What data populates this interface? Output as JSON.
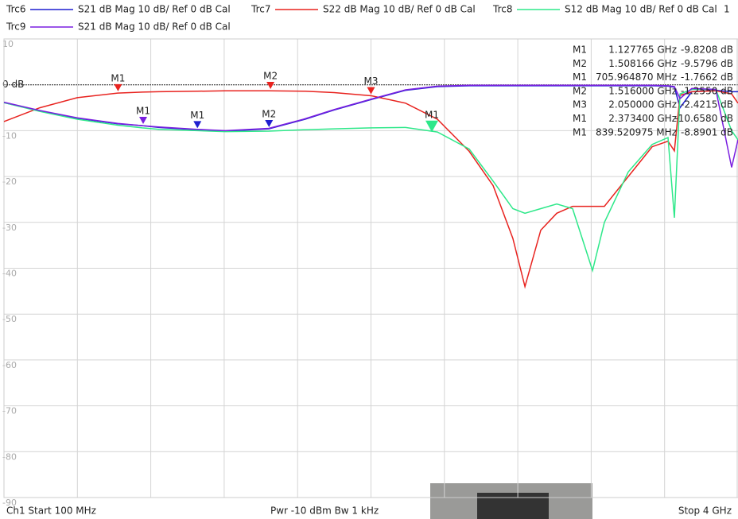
{
  "chart_data": {
    "type": "line",
    "x": [
      100,
      290,
      489,
      704,
      835,
      924,
      1127,
      1275,
      1507,
      1700,
      1854,
      2052,
      2234,
      2403,
      2572,
      2699,
      2804,
      2868,
      2952,
      3037,
      3121,
      3227,
      3290,
      3417,
      3544,
      3628,
      3662,
      3692,
      3755,
      3882,
      3966,
      4000
    ],
    "xlim": [
      100,
      4000
    ],
    "ylim": [
      -90,
      10
    ],
    "yticks": [
      10,
      {
        "value": 0,
        "label": "0 dB"
      },
      -10,
      -20,
      -30,
      -40,
      -50,
      -60,
      -70,
      -80,
      -90
    ],
    "grid": true,
    "series": [
      {
        "name": "Trc6",
        "description": "S21  dB Mag  10 dB/ Ref 0 dB  Cal",
        "color": "#1f1fd0",
        "values": [
          -3.9,
          -5.7,
          -7.3,
          -8.5,
          -8.9,
          -9.3,
          -9.8,
          -10.1,
          -9.6,
          -7.5,
          -5.5,
          -3.2,
          -1.2,
          -0.4,
          -0.2,
          -0.2,
          -0.2,
          -0.2,
          -0.2,
          -0.2,
          -0.2,
          -0.2,
          -0.2,
          -0.2,
          -0.2,
          -0.3,
          -0.5,
          -5,
          -1.5,
          -1.2,
          -1.5,
          -1.5
        ],
        "markers": [
          {
            "name": "M1",
            "x": 1127.765,
            "y": -9.8208,
            "x_label": "1.127765 GHz",
            "y_label": "-9.8208 dB"
          },
          {
            "name": "M2",
            "x": 1508.166,
            "y": -9.5796,
            "x_label": "1.508166 GHz",
            "y_label": "-9.5796 dB"
          }
        ]
      },
      {
        "name": "Trc7",
        "description": "S22  dB Mag  10 dB/ Ref 0 dB  Cal",
        "color": "#e8231f",
        "values": [
          -8,
          -5,
          -2.8,
          -1.8,
          -1.6,
          -1.5,
          -1.4,
          -1.3,
          -1.3,
          -1.4,
          -1.7,
          -2.4,
          -4,
          -7.5,
          -14.5,
          -22,
          -33.5,
          -44,
          -31.7,
          -28,
          -26.5,
          -26.5,
          -26.5,
          -20,
          -13.5,
          -12.3,
          -14.4,
          -2.3,
          -1.5,
          -1.3,
          -2,
          -4
        ],
        "markers": [
          {
            "name": "M1",
            "x": 705.96487,
            "y": -1.7662,
            "x_label": "705.964870 MHz",
            "y_label": "-1.7662 dB"
          },
          {
            "name": "M2",
            "x": 1516,
            "y": -1.255,
            "x_label": "1.516000 GHz",
            "y_label": "-1.2550 dB"
          },
          {
            "name": "M3",
            "x": 2050,
            "y": -2.4215,
            "x_label": "2.050000 GHz",
            "y_label": "-2.4215 dB"
          }
        ]
      },
      {
        "name": "Trc8",
        "description": "S12  dB Mag  10 dB/ Ref 0 dB  Cal",
        "color": "#2ee88a",
        "values": [
          -3.9,
          -5.8,
          -7.5,
          -8.8,
          -9.4,
          -9.7,
          -10,
          -10.2,
          -10.1,
          -9.8,
          -9.6,
          -9.4,
          -9.3,
          -10.3,
          -14,
          -21,
          -27,
          -28,
          -27,
          -26,
          -27,
          -40.5,
          -30,
          -19,
          -13,
          -11.5,
          -29,
          -2,
          -1,
          -1,
          -10,
          -12
        ],
        "markers": [
          {
            "name": "M1",
            "x": 2373.4,
            "y": -10.658,
            "x_label": "2.373400 GHz",
            "y_label": "-10.6580 dB"
          }
        ]
      },
      {
        "name": "Trc9",
        "description": "S21  dB Mag  10 dB/ Ref 0 dB  Cal",
        "color": "#7a1fe0",
        "values": [
          -3.8,
          -5.6,
          -7.2,
          -8.4,
          -8.9,
          -9.2,
          -9.7,
          -10,
          -9.5,
          -7.4,
          -5.4,
          -3.1,
          -1.1,
          -0.3,
          -0.1,
          -0.1,
          -0.1,
          -0.1,
          -0.1,
          -0.1,
          -0.1,
          -0.1,
          -0.1,
          -0.1,
          -0.1,
          -0.2,
          -0.4,
          -3,
          -0.8,
          -1,
          -18,
          -12
        ],
        "markers": [
          {
            "name": "M1",
            "x": 839.520975,
            "y": -8.8901,
            "x_label": "839.520975 MHz",
            "y_label": "-8.8901 dB"
          }
        ]
      }
    ],
    "channel_label": "1",
    "footer": {
      "start": "Ch1  Start  100 MHz",
      "power": "Pwr  -10 dBm  Bw  1 kHz",
      "stop": "Stop  4 GHz"
    }
  }
}
